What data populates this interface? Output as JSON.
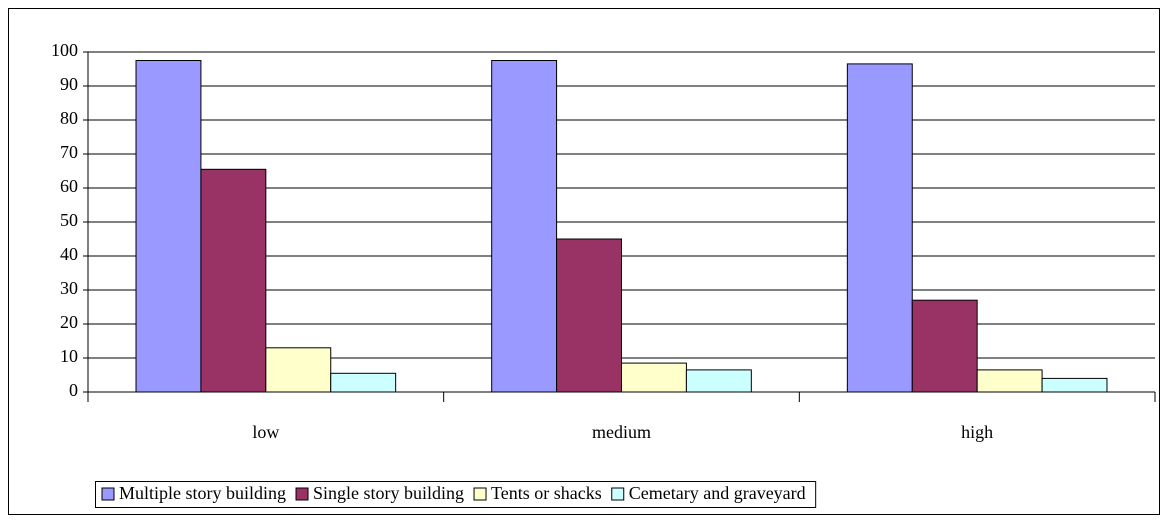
{
  "chart_data": {
    "type": "bar",
    "categories": [
      "low",
      "medium",
      "high"
    ],
    "series": [
      {
        "name": "Multiple story building",
        "color": "#9999ff",
        "values": [
          97.5,
          97.5,
          96.5
        ]
      },
      {
        "name": "Single story building",
        "color": "#993366",
        "values": [
          65.5,
          45,
          27
        ]
      },
      {
        "name": "Tents or shacks",
        "color": "#ffffcc",
        "values": [
          13,
          8.5,
          6.5
        ]
      },
      {
        "name": "Cemetary and graveyard",
        "color": "#ccffff",
        "values": [
          5.5,
          6.5,
          4
        ]
      }
    ],
    "ylim": [
      0,
      100
    ],
    "yticks": [
      0,
      10,
      20,
      30,
      40,
      50,
      60,
      70,
      80,
      90,
      100
    ],
    "grid": true,
    "legend": "bottom"
  }
}
